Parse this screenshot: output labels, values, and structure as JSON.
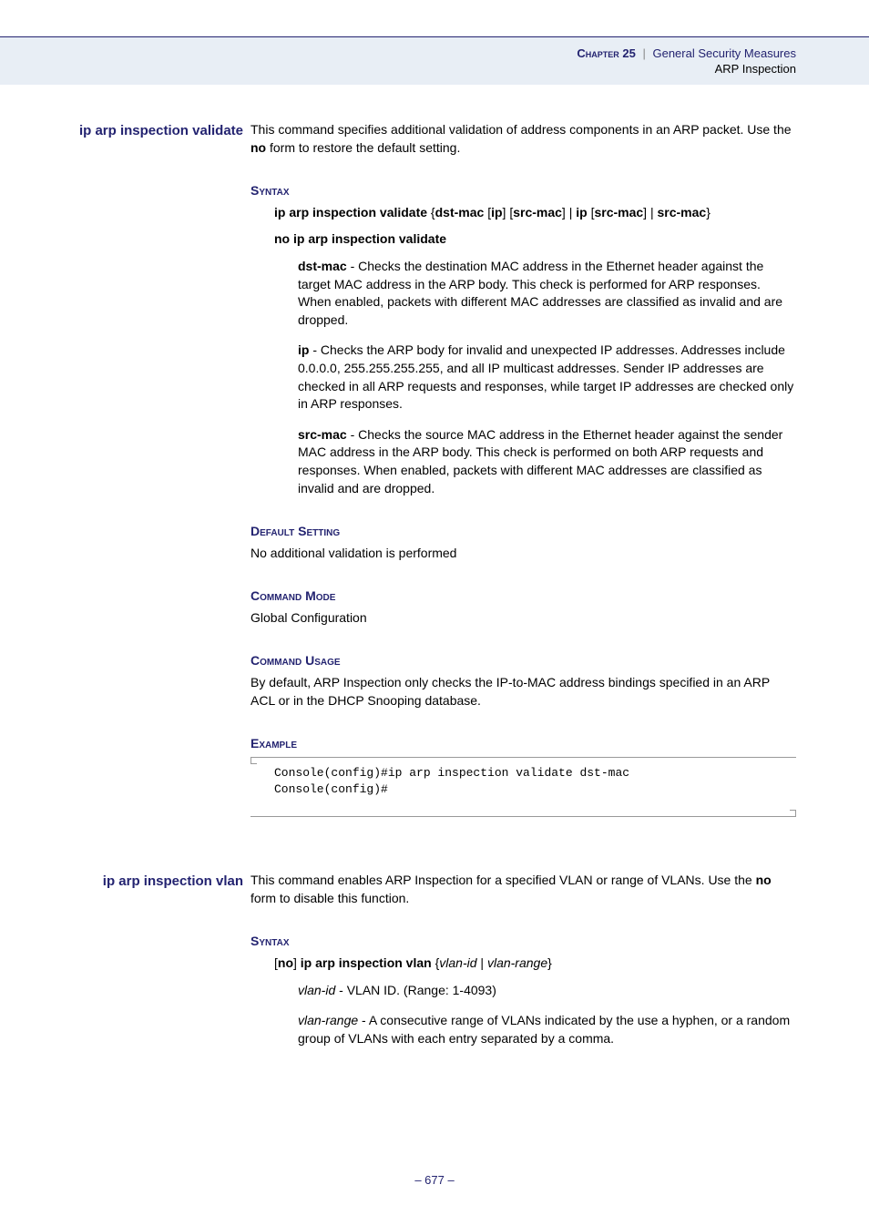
{
  "header": {
    "chapter_label": "Chapter 25",
    "separator": "|",
    "chapter_title": "General Security Measures",
    "sub_title": "ARP Inspection"
  },
  "sections": [
    {
      "command_name": "ip arp inspection validate",
      "description_html": "This command specifies additional validation of address components in an ARP packet. Use the <b>no</b> form to restore the default setting.",
      "syntax_heading": "Syntax",
      "syntax_lines": [
        "<b>ip arp inspection validate</b> {<b>dst-mac</b> [<b>ip</b>] [<b>src-mac</b>] | <b>ip</b> [<b>src-mac</b>] | <b>src-mac</b>}",
        "<b>no ip arp inspection validate</b>"
      ],
      "params": [
        "<b>dst-mac</b> - Checks the destination MAC address in the Ethernet header against the target MAC address in the ARP body. This check is performed for ARP responses. When enabled, packets with different MAC addresses are classified as invalid and are dropped.",
        "<b>ip</b> - Checks the ARP body for invalid and unexpected IP addresses. Addresses include 0.0.0.0, 255.255.255.255, and all IP multicast addresses. Sender IP addresses are checked in all ARP requests and responses, while target IP addresses are checked only in ARP responses.",
        "<b>src-mac</b> - Checks the source MAC address in the Ethernet header against the sender MAC address in the ARP body. This check is performed on both ARP requests and responses. When enabled, packets with different MAC addresses are classified as invalid and are dropped."
      ],
      "default_heading": "Default Setting",
      "default_text": "No additional validation is performed",
      "mode_heading": "Command Mode",
      "mode_text": "Global Configuration",
      "usage_heading": "Command Usage",
      "usage_text": "By default, ARP Inspection only checks the IP-to-MAC address bindings specified in an ARP ACL or in the DHCP Snooping database.",
      "example_heading": "Example",
      "example_code": "Console(config)#ip arp inspection validate dst-mac\nConsole(config)#"
    },
    {
      "command_name": "ip arp inspection vlan",
      "description_html": "This command enables ARP Inspection for a specified VLAN or range of VLANs. Use the <b>no</b> form to disable this function.",
      "syntax_heading": "Syntax",
      "syntax_lines": [
        "[<b>no</b>] <b>ip arp inspection vlan</b> {<i>vlan-id</i> | <i>vlan-range</i>}"
      ],
      "params": [
        "<i>vlan-id</i> - VLAN ID. (Range: 1-4093)",
        "<i>vlan-range</i> - A consecutive range of VLANs indicated by the use a hyphen, or a random group of VLANs with each entry separated by a comma."
      ]
    }
  ],
  "page_number": "– 677 –",
  "colors": {
    "header_bg": "#e8eef5",
    "accent": "#232370",
    "text": "#000000"
  }
}
